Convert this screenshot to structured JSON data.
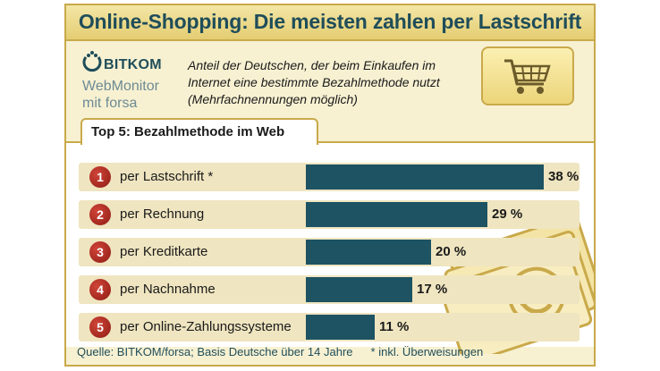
{
  "title": "Online-Shopping: Die meisten zahlen per Lastschrift",
  "logo": {
    "brand": "BITKOM",
    "line1": "WebMonitor",
    "line2": "mit forsa"
  },
  "subtitle": "Anteil der Deutschen, der beim Einkaufen im Internet eine bestimmte Bezahlmethode nutzt (Mehrfachnennungen möglich)",
  "tab_label": "Top 5: Bezahlmethode im Web",
  "icons": [
    "shopping-cart-icon",
    "euro-banknotes-icon",
    "bitkom-logo-icon"
  ],
  "colors": {
    "bar": "#1d5363",
    "rank_badge": "#b0281e",
    "title_text": "#1f4d5a",
    "card_background": "#f7f1d2",
    "row_background": "#efe5c0"
  },
  "chart_data": {
    "type": "bar",
    "orientation": "horizontal",
    "title": "Top 5: Bezahlmethode im Web",
    "categories": [
      "per Lastschrift *",
      "per Rechnung",
      "per Kreditkarte",
      "per Nachnahme",
      "per Online-Zahlungssysteme"
    ],
    "ranks": [
      "1",
      "2",
      "3",
      "4",
      "5"
    ],
    "values": [
      38,
      29,
      20,
      17,
      11
    ],
    "value_labels": [
      "38 %",
      "29 %",
      "20 %",
      "17 %",
      "11 %"
    ],
    "unit": "%",
    "xlim": [
      0,
      40
    ],
    "grid": false
  },
  "footer": {
    "source": "Quelle: BITKOM/forsa; Basis Deutsche über 14 Jahre",
    "note": "* inkl. Überweisungen"
  }
}
